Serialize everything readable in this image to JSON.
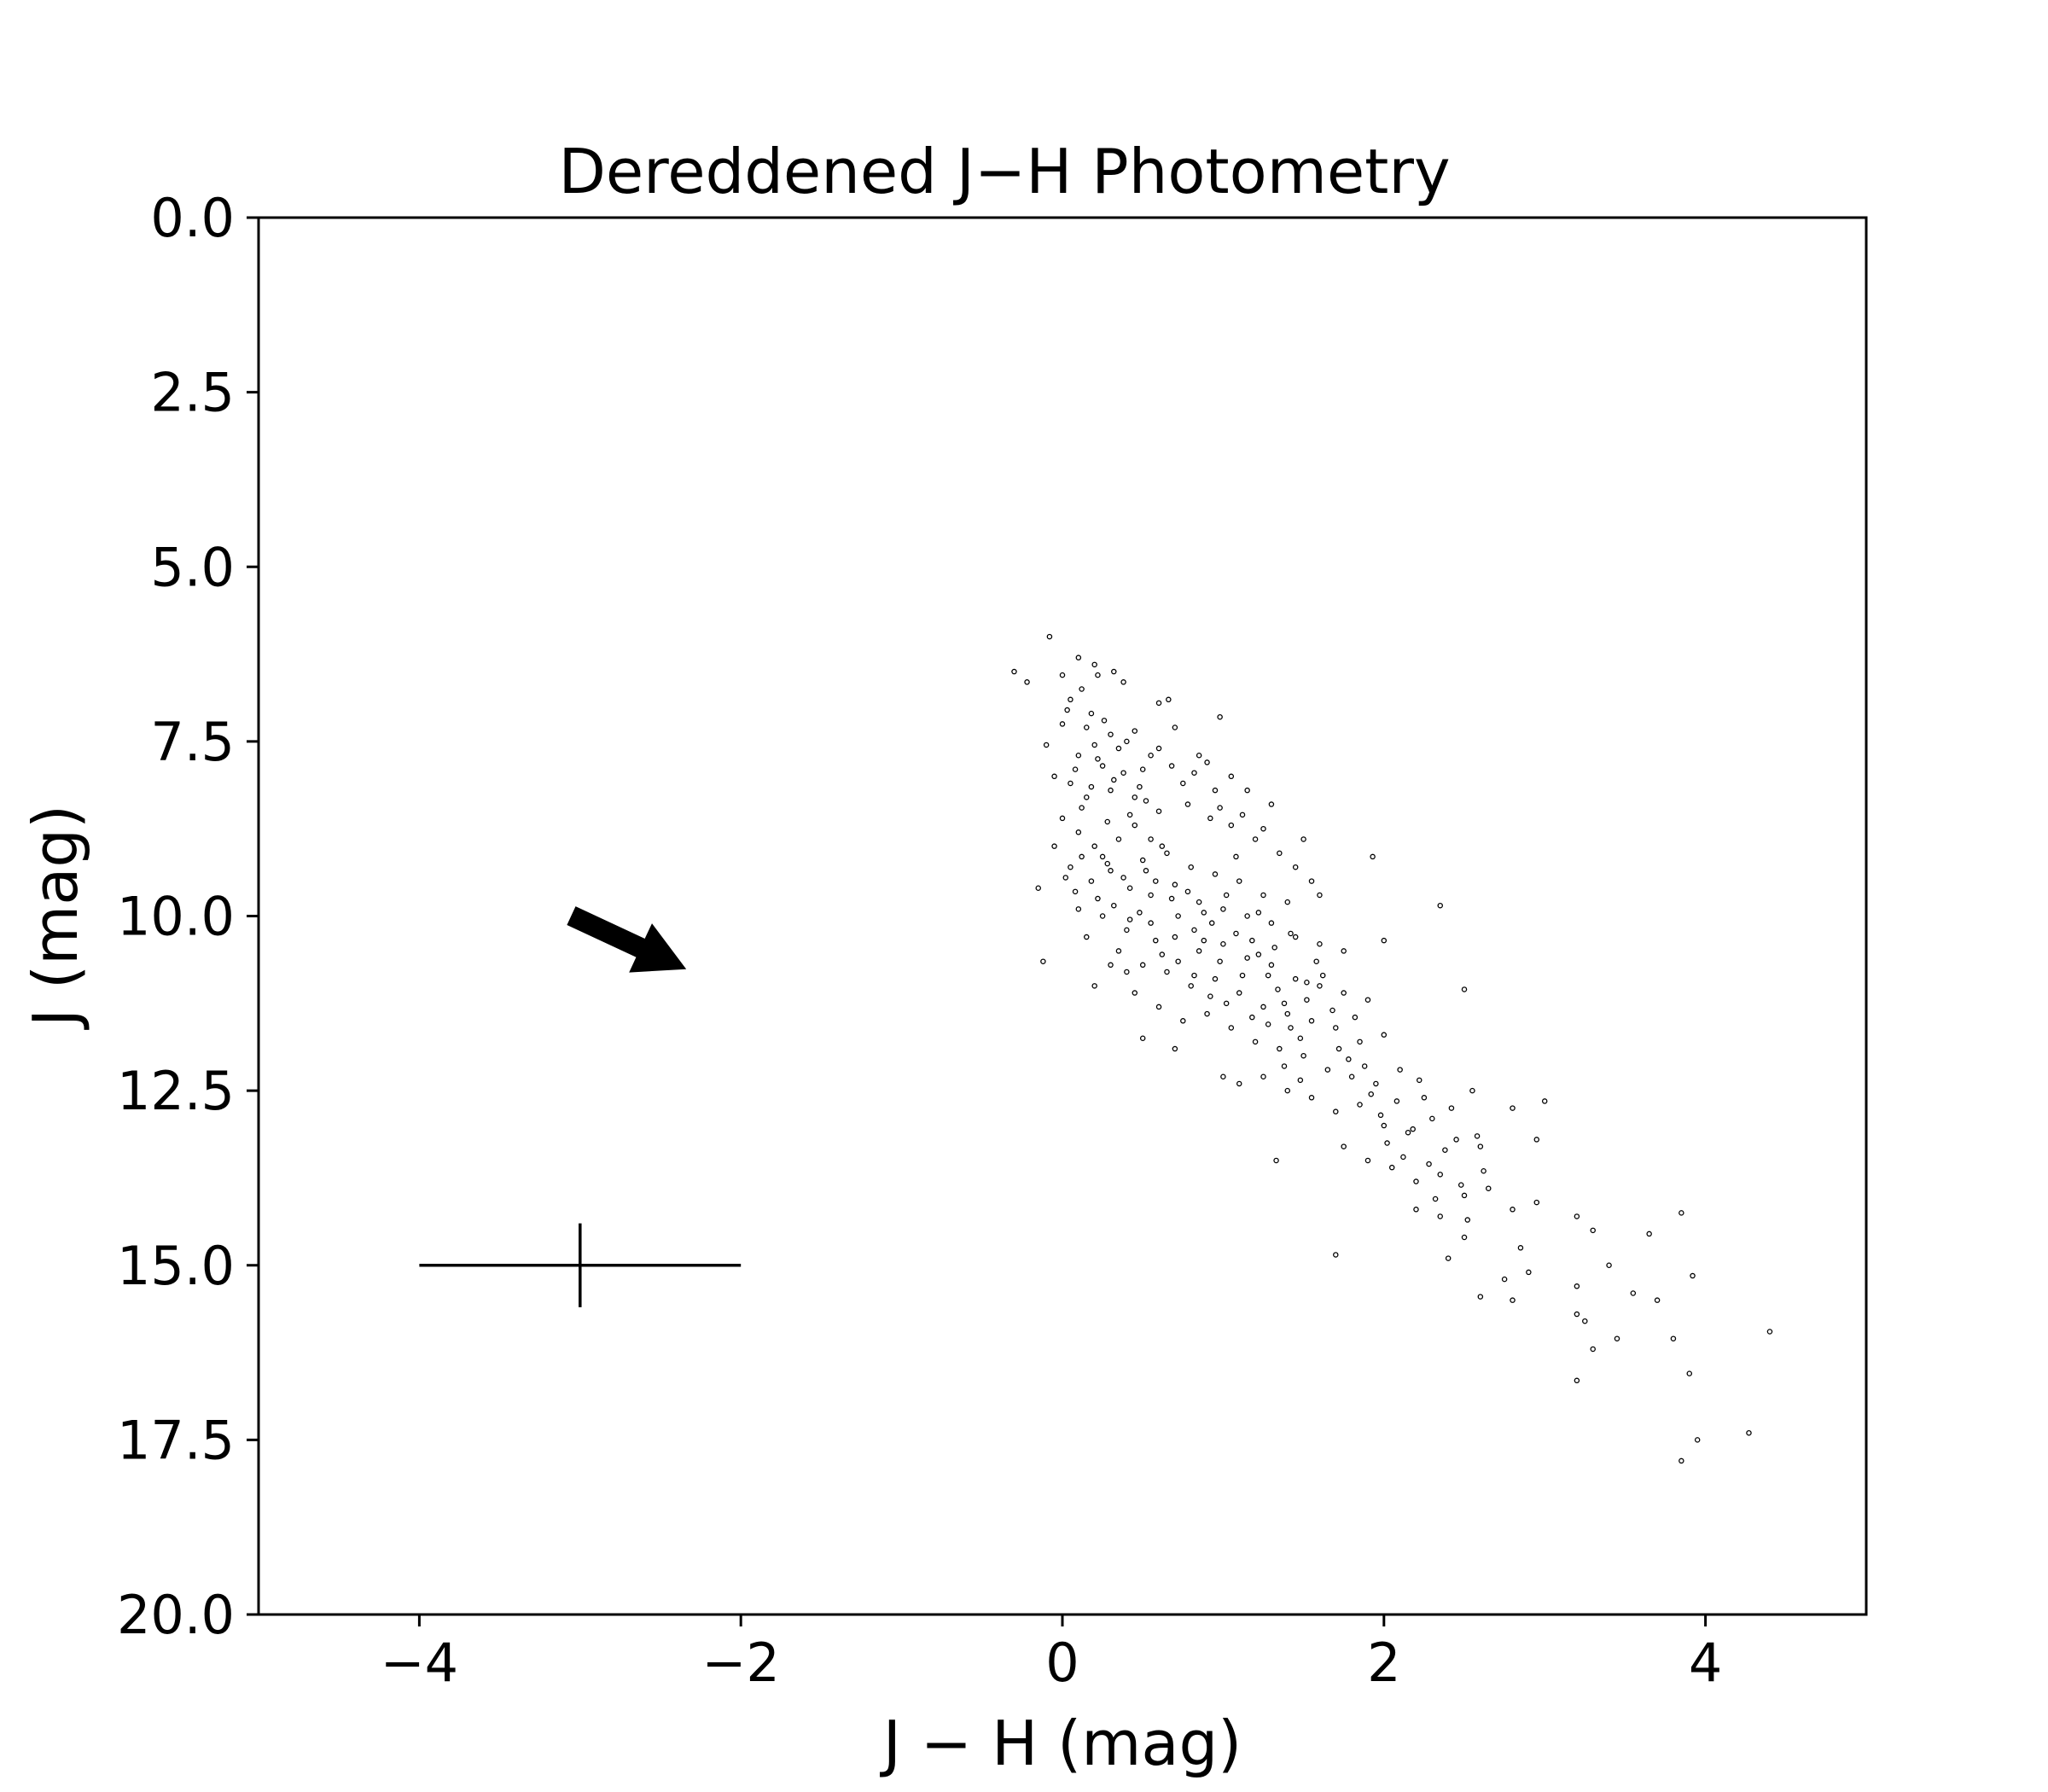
{
  "chart_data": {
    "type": "scatter",
    "title": "Dereddened J−H Photometry",
    "xlabel": "J − H (mag)",
    "ylabel": "J (mag)",
    "xlim": [
      -5,
      5
    ],
    "ylim": [
      20,
      0
    ],
    "y_inverted": true,
    "grid": false,
    "xticks": [
      {
        "value": -4,
        "label": "−4"
      },
      {
        "value": -2,
        "label": "−2"
      },
      {
        "value": 0,
        "label": "0"
      },
      {
        "value": 2,
        "label": "2"
      },
      {
        "value": 4,
        "label": "4"
      }
    ],
    "yticks": [
      {
        "value": 0,
        "label": "0.0"
      },
      {
        "value": 2.5,
        "label": "2.5"
      },
      {
        "value": 5,
        "label": "5.0"
      },
      {
        "value": 7.5,
        "label": "7.5"
      },
      {
        "value": 10,
        "label": "10.0"
      },
      {
        "value": 12.5,
        "label": "12.5"
      },
      {
        "value": 15,
        "label": "15.0"
      },
      {
        "value": 17.5,
        "label": "17.5"
      },
      {
        "value": 20,
        "label": "20.0"
      }
    ],
    "series": [
      {
        "marker": "open-circle",
        "color": "#000000",
        "sampled": true,
        "points": [
          [
            -0.08,
            6.0
          ],
          [
            -0.3,
            6.5
          ],
          [
            -0.22,
            6.65
          ],
          [
            0.1,
            6.3
          ],
          [
            0.2,
            6.4
          ],
          [
            0.32,
            6.5
          ],
          [
            0.38,
            6.65
          ],
          [
            0.22,
            6.55
          ],
          [
            0.0,
            6.55
          ],
          [
            0.12,
            6.75
          ],
          [
            0.6,
            6.95
          ],
          [
            0.66,
            6.9
          ],
          [
            0.98,
            7.15
          ],
          [
            -0.1,
            7.55
          ],
          [
            0.0,
            7.25
          ],
          [
            0.03,
            7.05
          ],
          [
            0.15,
            7.3
          ],
          [
            0.3,
            7.4
          ],
          [
            0.45,
            7.35
          ],
          [
            0.7,
            7.3
          ],
          [
            0.6,
            7.6
          ],
          [
            0.85,
            7.7
          ],
          [
            0.9,
            7.8
          ],
          [
            1.05,
            8.0
          ],
          [
            1.15,
            8.2
          ],
          [
            1.3,
            8.4
          ],
          [
            0.1,
            7.7
          ],
          [
            0.2,
            7.55
          ],
          [
            0.25,
            7.85
          ],
          [
            0.35,
            7.6
          ],
          [
            0.5,
            7.9
          ],
          [
            0.75,
            8.1
          ],
          [
            0.95,
            8.2
          ],
          [
            -0.05,
            8.0
          ],
          [
            0.05,
            8.1
          ],
          [
            0.15,
            8.3
          ],
          [
            0.3,
            8.2
          ],
          [
            0.45,
            8.3
          ],
          [
            0.6,
            8.5
          ],
          [
            0.78,
            8.4
          ],
          [
            0.92,
            8.6
          ],
          [
            1.05,
            8.7
          ],
          [
            1.2,
            8.9
          ],
          [
            1.35,
            9.1
          ],
          [
            1.45,
            9.3
          ],
          [
            1.55,
            9.5
          ],
          [
            1.6,
            9.7
          ],
          [
            1.5,
            8.9
          ],
          [
            1.93,
            9.15
          ],
          [
            0.0,
            8.6
          ],
          [
            0.1,
            8.8
          ],
          [
            0.2,
            9.0
          ],
          [
            0.35,
            8.9
          ],
          [
            0.5,
            9.2
          ],
          [
            0.65,
            9.1
          ],
          [
            0.8,
            9.3
          ],
          [
            0.95,
            9.4
          ],
          [
            1.1,
            9.5
          ],
          [
            1.25,
            9.7
          ],
          [
            1.4,
            9.8
          ],
          [
            -0.05,
            9.0
          ],
          [
            0.05,
            9.3
          ],
          [
            0.18,
            9.5
          ],
          [
            0.3,
            9.35
          ],
          [
            0.42,
            9.6
          ],
          [
            0.55,
            9.7
          ],
          [
            0.7,
            9.55
          ],
          [
            0.85,
            9.8
          ],
          [
            1.0,
            9.9
          ],
          [
            1.15,
            10.0
          ],
          [
            1.3,
            10.1
          ],
          [
            1.45,
            10.3
          ],
          [
            1.6,
            10.4
          ],
          [
            1.75,
            10.5
          ],
          [
            0.1,
            9.9
          ],
          [
            0.25,
            10.0
          ],
          [
            0.4,
            10.2
          ],
          [
            0.55,
            10.1
          ],
          [
            0.7,
            10.3
          ],
          [
            0.85,
            10.5
          ],
          [
            1.0,
            10.4
          ],
          [
            1.15,
            10.6
          ],
          [
            1.3,
            10.7
          ],
          [
            1.45,
            10.9
          ],
          [
            1.6,
            11.0
          ],
          [
            1.75,
            11.1
          ],
          [
            1.9,
            11.2
          ],
          [
            0.35,
            10.5
          ],
          [
            0.5,
            10.7
          ],
          [
            0.65,
            10.8
          ],
          [
            0.8,
            11.0
          ],
          [
            0.95,
            10.9
          ],
          [
            1.1,
            11.1
          ],
          [
            1.25,
            11.3
          ],
          [
            1.4,
            11.4
          ],
          [
            1.55,
            11.5
          ],
          [
            1.7,
            11.6
          ],
          [
            1.85,
            11.8
          ],
          [
            2.0,
            11.7
          ],
          [
            0.45,
            11.1
          ],
          [
            0.6,
            11.3
          ],
          [
            0.75,
            11.5
          ],
          [
            0.9,
            11.4
          ],
          [
            1.05,
            11.6
          ],
          [
            1.2,
            11.8
          ],
          [
            1.35,
            11.9
          ],
          [
            1.5,
            12.0
          ],
          [
            1.65,
            12.2
          ],
          [
            1.8,
            12.3
          ],
          [
            1.95,
            12.4
          ],
          [
            2.1,
            12.2
          ],
          [
            2.25,
            12.6
          ],
          [
            1.1,
            12.4
          ],
          [
            1.25,
            12.3
          ],
          [
            1.4,
            12.5
          ],
          [
            1.55,
            12.6
          ],
          [
            1.7,
            12.8
          ],
          [
            1.85,
            12.7
          ],
          [
            2.0,
            13.0
          ],
          [
            2.15,
            13.1
          ],
          [
            2.3,
            12.9
          ],
          [
            2.45,
            13.2
          ],
          [
            2.6,
            13.3
          ],
          [
            1.75,
            13.3
          ],
          [
            1.9,
            13.5
          ],
          [
            2.05,
            13.6
          ],
          [
            2.2,
            13.8
          ],
          [
            2.35,
            13.7
          ],
          [
            2.5,
            14.0
          ],
          [
            2.65,
            13.9
          ],
          [
            2.8,
            14.2
          ],
          [
            2.95,
            14.1
          ],
          [
            2.2,
            14.2
          ],
          [
            2.35,
            14.3
          ],
          [
            2.5,
            14.6
          ],
          [
            2.4,
            14.9
          ],
          [
            2.85,
            14.75
          ],
          [
            2.9,
            15.1
          ],
          [
            3.2,
            14.3
          ],
          [
            3.3,
            14.5
          ],
          [
            3.2,
            15.3
          ],
          [
            3.4,
            15.0
          ],
          [
            3.55,
            15.4
          ],
          [
            3.7,
            15.5
          ],
          [
            3.65,
            14.55
          ],
          [
            3.85,
            14.25
          ],
          [
            3.92,
            15.15
          ],
          [
            3.2,
            15.7
          ],
          [
            3.25,
            15.8
          ],
          [
            3.3,
            16.2
          ],
          [
            3.45,
            16.05
          ],
          [
            3.8,
            16.05
          ],
          [
            4.4,
            15.95
          ],
          [
            3.2,
            16.65
          ],
          [
            3.9,
            16.55
          ],
          [
            4.27,
            17.4
          ],
          [
            3.95,
            17.5
          ],
          [
            3.85,
            17.8
          ],
          [
            2.6,
            15.45
          ],
          [
            2.8,
            15.5
          ],
          [
            2.75,
            15.2
          ],
          [
            1.7,
            14.85
          ],
          [
            1.33,
            13.5
          ],
          [
            2.35,
            9.85
          ],
          [
            2.0,
            10.35
          ],
          [
            2.5,
            11.05
          ],
          [
            2.55,
            12.5
          ],
          [
            2.8,
            12.75
          ],
          [
            3.0,
            12.65
          ],
          [
            2.95,
            13.2
          ],
          [
            -0.12,
            10.65
          ],
          [
            -0.15,
            9.6
          ],
          [
            0.2,
            11.0
          ],
          [
            0.5,
            11.75
          ],
          [
            0.3,
            10.7
          ],
          [
            0.4,
            10.8
          ],
          [
            0.7,
            11.9
          ],
          [
            1.0,
            12.3
          ],
          [
            0.15,
            10.3
          ],
          [
            0.25,
            9.15
          ],
          [
            0.45,
            8.7
          ],
          [
            0.55,
            8.9
          ],
          [
            0.62,
            9.0
          ],
          [
            0.58,
            9.5
          ],
          [
            0.72,
            10.0
          ],
          [
            0.82,
            10.2
          ],
          [
            0.88,
            10.35
          ],
          [
            0.93,
            10.1
          ],
          [
            1.02,
            9.7
          ],
          [
            1.08,
            10.25
          ],
          [
            1.18,
            10.35
          ],
          [
            1.22,
            10.55
          ],
          [
            1.28,
            10.85
          ],
          [
            1.34,
            11.05
          ],
          [
            1.38,
            11.25
          ],
          [
            1.42,
            11.6
          ],
          [
            1.48,
            11.75
          ],
          [
            1.52,
            11.2
          ],
          [
            1.58,
            10.65
          ],
          [
            1.62,
            10.85
          ],
          [
            1.68,
            11.35
          ],
          [
            1.72,
            11.9
          ],
          [
            1.78,
            12.05
          ],
          [
            1.82,
            11.45
          ],
          [
            1.88,
            12.15
          ],
          [
            1.92,
            12.55
          ],
          [
            1.98,
            12.85
          ],
          [
            2.02,
            13.25
          ],
          [
            2.08,
            12.65
          ],
          [
            2.12,
            13.45
          ],
          [
            2.18,
            13.05
          ],
          [
            2.22,
            12.35
          ],
          [
            2.28,
            13.55
          ],
          [
            2.32,
            14.05
          ],
          [
            2.38,
            13.35
          ],
          [
            2.42,
            12.75
          ],
          [
            2.48,
            13.85
          ],
          [
            2.52,
            14.35
          ],
          [
            2.58,
            13.15
          ],
          [
            2.62,
            13.65
          ],
          [
            0.08,
            7.9
          ],
          [
            0.12,
            8.45
          ],
          [
            0.18,
            8.15
          ],
          [
            0.22,
            7.75
          ],
          [
            0.28,
            8.65
          ],
          [
            0.32,
            8.05
          ],
          [
            0.38,
            7.95
          ],
          [
            0.42,
            8.55
          ],
          [
            0.48,
            8.15
          ],
          [
            0.52,
            8.35
          ],
          [
            0.02,
            9.45
          ],
          [
            0.08,
            9.65
          ],
          [
            0.12,
            9.15
          ],
          [
            0.22,
            9.75
          ],
          [
            0.28,
            9.25
          ],
          [
            0.32,
            9.85
          ],
          [
            0.38,
            9.45
          ],
          [
            0.42,
            10.05
          ],
          [
            0.48,
            9.95
          ],
          [
            0.52,
            9.35
          ],
          [
            0.58,
            10.35
          ],
          [
            0.62,
            10.55
          ],
          [
            0.68,
            9.75
          ],
          [
            0.72,
            10.65
          ],
          [
            0.78,
            9.65
          ],
          [
            0.82,
            10.85
          ],
          [
            0.88,
            9.95
          ],
          [
            0.92,
            11.15
          ],
          [
            0.98,
            10.65
          ],
          [
            1.02,
            11.25
          ],
          [
            1.08,
            9.15
          ],
          [
            1.12,
            10.85
          ],
          [
            1.18,
            11.45
          ],
          [
            1.22,
            9.95
          ],
          [
            1.28,
            11.55
          ],
          [
            1.32,
            10.45
          ],
          [
            1.38,
            12.15
          ],
          [
            1.42,
            10.25
          ],
          [
            1.48,
            12.35
          ],
          [
            1.52,
            10.95
          ],
          [
            0.05,
            6.9
          ],
          [
            0.18,
            7.1
          ],
          [
            0.26,
            7.2
          ],
          [
            0.4,
            7.5
          ],
          [
            0.55,
            7.7
          ],
          [
            0.68,
            7.85
          ],
          [
            0.82,
            7.95
          ],
          [
            0.98,
            8.45
          ],
          [
            1.12,
            8.55
          ],
          [
            1.25,
            8.75
          ]
        ]
      }
    ],
    "annotations": [
      {
        "type": "arrow",
        "shape": "filled-arrow",
        "from": [
          -3.05,
          10.0
        ],
        "to": [
          -2.35,
          10.75
        ]
      },
      {
        "type": "error-cross",
        "center": [
          -3,
          15
        ],
        "x_error": 1.0,
        "y_error": 0.6
      }
    ]
  }
}
